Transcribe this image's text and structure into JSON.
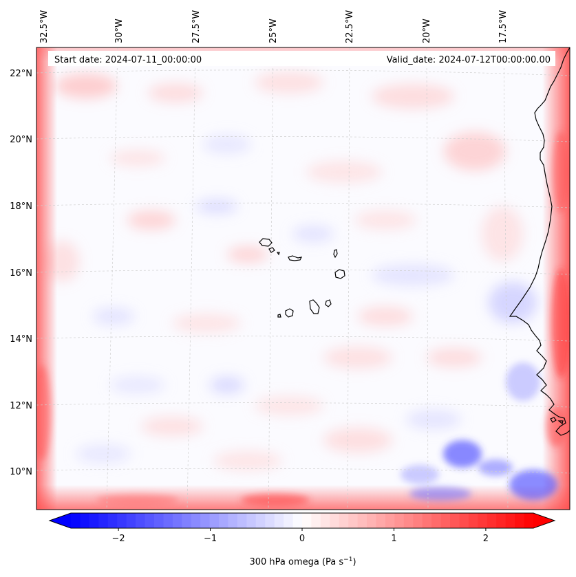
{
  "header": {
    "start_date": "Start date: 2024-07-11_00:00:00",
    "valid_date": "Valid_date: 2024-07-12T00:00:00.00"
  },
  "map": {
    "lon_ticks": [
      "32.5°W",
      "30°W",
      "27.5°W",
      "25°W",
      "22.5°W",
      "20°W",
      "17.5°W"
    ],
    "lat_ticks": [
      "22°N",
      "20°N",
      "18°N",
      "16°N",
      "14°N",
      "12°N",
      "10°N"
    ],
    "field_colors": {
      "negative": "#0000ff",
      "neutral": "#ffffff",
      "positive": "#ff0000"
    }
  },
  "colorbar": {
    "label_main": "300 hPa omega (Pa s",
    "label_sup": "−1",
    "label_end": ")",
    "ticks": [
      "−2",
      "−1",
      "0",
      "1",
      "2"
    ],
    "vmin": -2.75,
    "vmax": 2.75,
    "tick_values": [
      -2,
      -1,
      0,
      1,
      2
    ]
  }
}
